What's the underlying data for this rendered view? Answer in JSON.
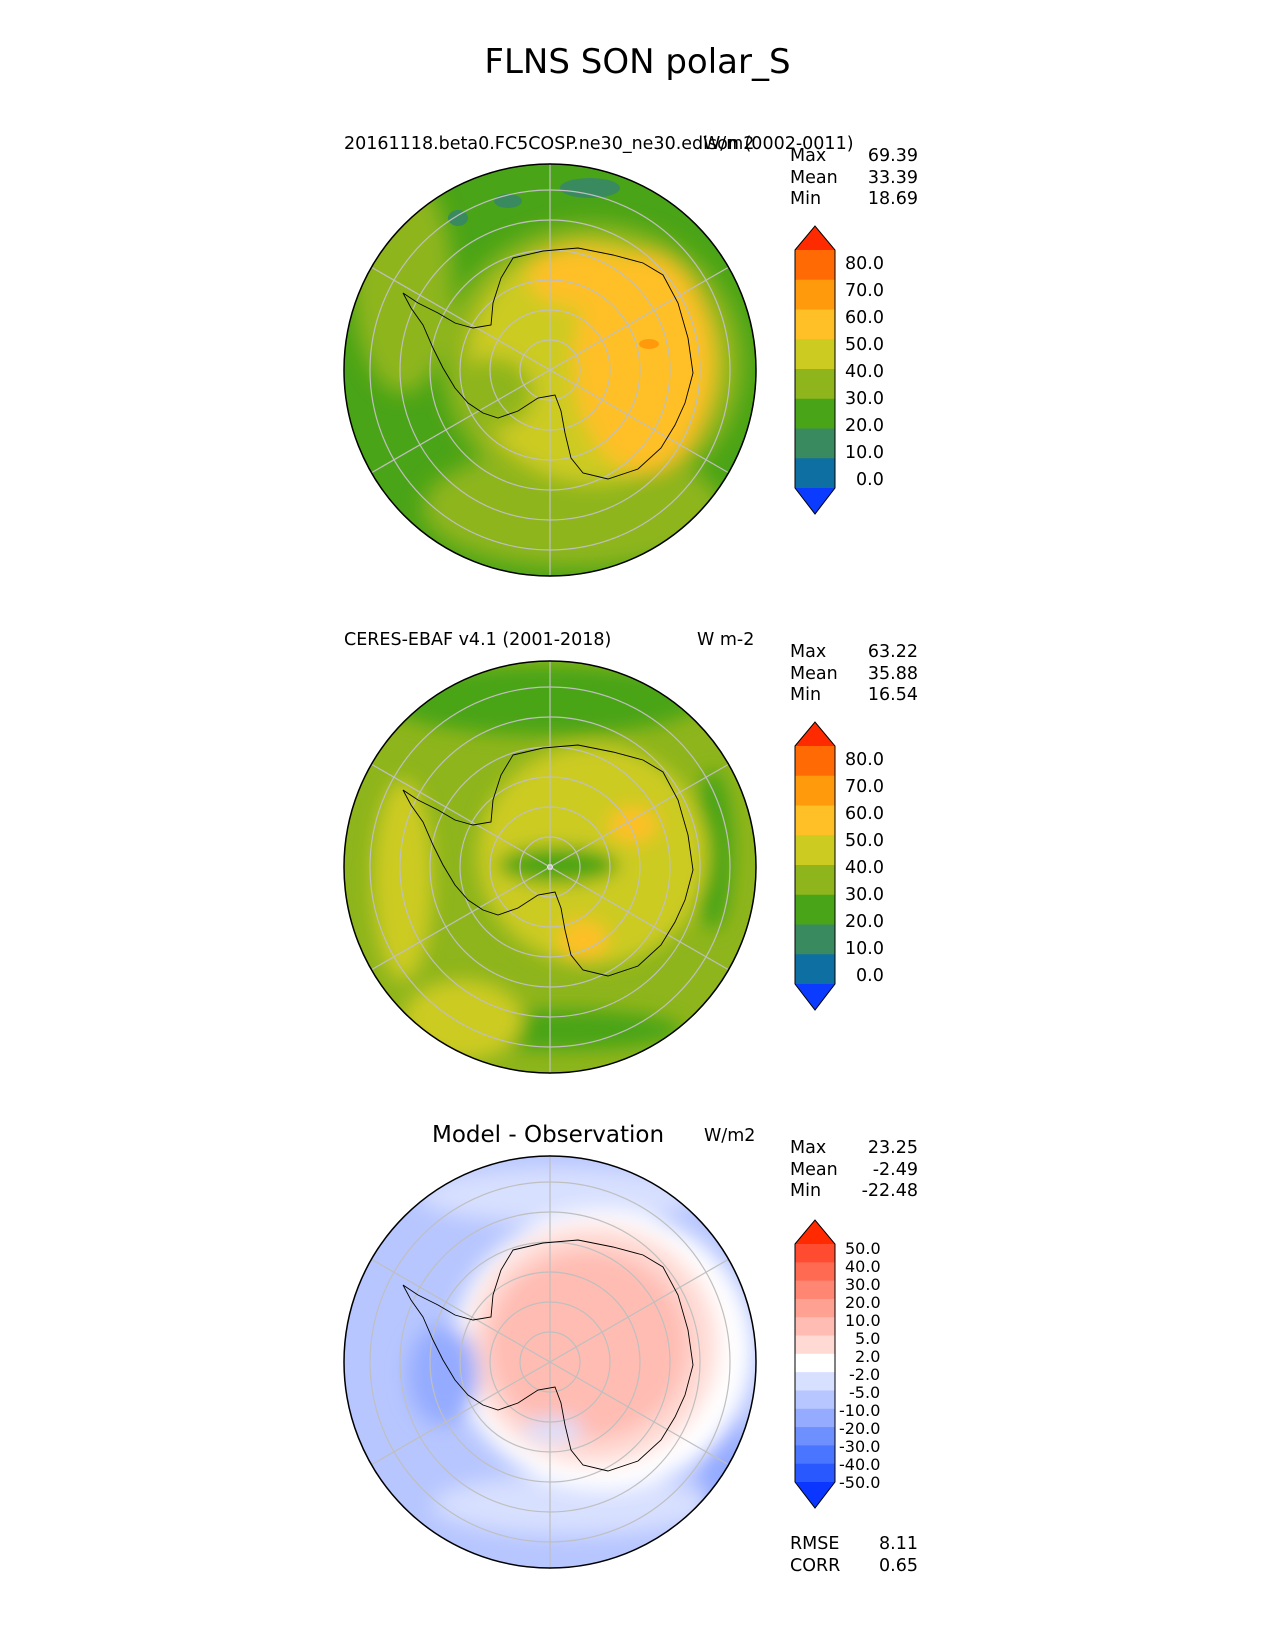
{
  "main_title": "FLNS SON polar_S",
  "colors": {
    "seq": [
      "#0a3bff",
      "#0e6fa2",
      "#3a8a5f",
      "#4aa417",
      "#8eb51c",
      "#cccb22",
      "#fec026",
      "#ff9a0c",
      "#ff6a04",
      "#ff2b00"
    ],
    "diff": [
      "#0a36ff",
      "#2a58ff",
      "#4a75ff",
      "#6e90ff",
      "#94abff",
      "#b7c6ff",
      "#d8e0ff",
      "#ffffff",
      "#ffdad4",
      "#ffbcb2",
      "#ffa192",
      "#ff8672",
      "#ff6a52",
      "#ff4c30",
      "#ff2a00"
    ],
    "coast": "#000000",
    "grid": "#bfbfbf"
  },
  "panels": [
    {
      "title": "20161118.beta0.FC5COSP.ne30_ne30.edison (0002-0011)",
      "units": "W/m2",
      "stats": {
        "labels": [
          "Max",
          "Mean",
          "Min"
        ],
        "values": [
          "69.39",
          "33.39",
          "18.69"
        ]
      },
      "colorbar_ticks": [
        "80.0",
        "70.0",
        "60.0",
        "50.0",
        "40.0",
        "30.0",
        "20.0",
        "10.0",
        "0.0"
      ]
    },
    {
      "title": "CERES-EBAF v4.1 (2001-2018)",
      "units": "W m-2",
      "stats": {
        "labels": [
          "Max",
          "Mean",
          "Min"
        ],
        "values": [
          "63.22",
          "35.88",
          "16.54"
        ]
      },
      "colorbar_ticks": [
        "80.0",
        "70.0",
        "60.0",
        "50.0",
        "40.0",
        "30.0",
        "20.0",
        "10.0",
        "0.0"
      ]
    },
    {
      "title": "Model - Observation",
      "units": "W/m2",
      "stats": {
        "labels": [
          "Max",
          "Mean",
          "Min"
        ],
        "values": [
          "23.25",
          "-2.49",
          "-22.48"
        ]
      },
      "colorbar_ticks": [
        "50.0",
        "40.0",
        "30.0",
        "20.0",
        "10.0",
        "5.0",
        "2.0",
        "-2.0",
        "-5.0",
        "-10.0",
        "-20.0",
        "-30.0",
        "-40.0",
        "-50.0"
      ],
      "metrics": {
        "labels": [
          "RMSE",
          "CORR"
        ],
        "values": [
          "8.11",
          "0.65"
        ]
      }
    }
  ]
}
